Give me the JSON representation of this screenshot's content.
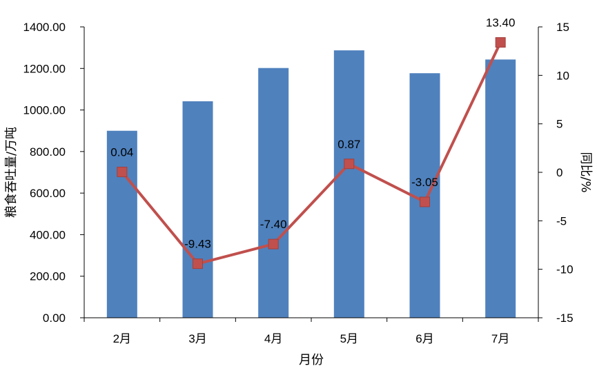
{
  "chart_data": {
    "type": "bar+line",
    "categories": [
      "2月",
      "3月",
      "4月",
      "5月",
      "6月",
      "7月"
    ],
    "series": [
      {
        "name": "粮食吞吐量",
        "type": "bar",
        "axis": "left",
        "color": "#4f81bd",
        "values": [
          900,
          1042,
          1202,
          1287,
          1177,
          1243
        ]
      },
      {
        "name": "同比",
        "type": "line",
        "axis": "right",
        "color": "#c0504d",
        "values": [
          0.04,
          -9.43,
          -7.4,
          0.87,
          -3.05,
          13.4
        ],
        "labels": [
          "0.04",
          "-9.43",
          "-7.40",
          "0.87",
          "-3.05",
          "13.40"
        ]
      }
    ],
    "xlabel": "月份",
    "ylabel": "粮食吞吐量/万吨",
    "y2label": "同比/%",
    "ylim": [
      0,
      1400
    ],
    "y2lim": [
      -15,
      15
    ],
    "yticks": [
      "0.00",
      "200.00",
      "400.00",
      "600.00",
      "800.00",
      "1000.00",
      "1200.00",
      "1400.00"
    ],
    "y2ticks": [
      "-15",
      "-10",
      "-5",
      "0",
      "5",
      "10",
      "15"
    ],
    "grid": false,
    "legend": "none"
  }
}
